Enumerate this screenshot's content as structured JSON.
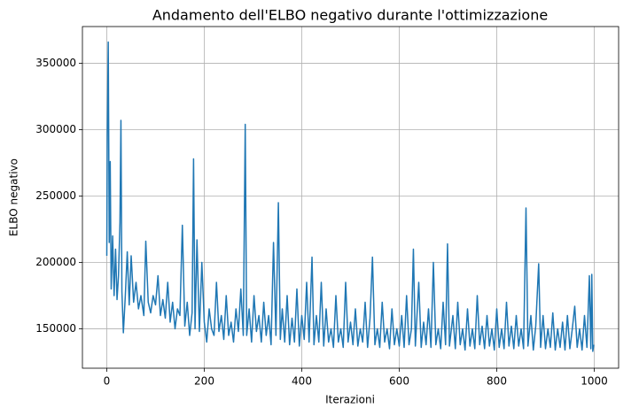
{
  "chart_data": {
    "type": "line",
    "title": "Andamento dell'ELBO negativo durante l'ottimizzazione",
    "xlabel": "Iterazioni",
    "ylabel": "ELBO negativo",
    "x": [
      0,
      1,
      3,
      5,
      7,
      9,
      12,
      15,
      18,
      21,
      24,
      27,
      29,
      31,
      34,
      38,
      42,
      46,
      50,
      55,
      60,
      65,
      70,
      76,
      80,
      85,
      90,
      95,
      100,
      105,
      110,
      115,
      120,
      125,
      130,
      135,
      140,
      145,
      150,
      155,
      160,
      165,
      170,
      175,
      178,
      181,
      185,
      190,
      195,
      200,
      205,
      210,
      215,
      220,
      225,
      230,
      235,
      240,
      245,
      250,
      255,
      260,
      265,
      270,
      275,
      280,
      284,
      287,
      292,
      297,
      302,
      307,
      312,
      317,
      322,
      327,
      332,
      337,
      342,
      347,
      352,
      356,
      360,
      365,
      370,
      375,
      380,
      385,
      390,
      395,
      400,
      405,
      410,
      415,
      421,
      425,
      430,
      435,
      440,
      445,
      450,
      455,
      460,
      465,
      470,
      475,
      480,
      485,
      490,
      495,
      500,
      505,
      510,
      515,
      520,
      525,
      530,
      535,
      540,
      545,
      550,
      555,
      560,
      565,
      570,
      575,
      580,
      585,
      590,
      595,
      600,
      605,
      610,
      615,
      620,
      625,
      629,
      633,
      640,
      645,
      650,
      655,
      660,
      665,
      670,
      675,
      680,
      685,
      690,
      695,
      699,
      703,
      710,
      715,
      720,
      725,
      730,
      735,
      740,
      745,
      750,
      755,
      760,
      765,
      770,
      775,
      780,
      785,
      790,
      795,
      800,
      805,
      810,
      815,
      820,
      825,
      830,
      835,
      840,
      845,
      850,
      855,
      860,
      864,
      870,
      875,
      880,
      886,
      890,
      895,
      900,
      905,
      910,
      915,
      920,
      925,
      930,
      935,
      940,
      945,
      950,
      955,
      960,
      965,
      970,
      975,
      980,
      985,
      990,
      993,
      995,
      997,
      999
    ],
    "series": [
      {
        "name": "ELBO negativo",
        "color": "#1f77b4",
        "values": [
          205000,
          296000,
          366000,
          215000,
          276000,
          180000,
          220000,
          175000,
          210000,
          172000,
          190000,
          230000,
          307000,
          178000,
          147000,
          175000,
          208000,
          168000,
          205000,
          170000,
          185000,
          165000,
          175000,
          160000,
          216000,
          170000,
          162000,
          175000,
          168000,
          190000,
          160000,
          172000,
          158000,
          185000,
          155000,
          170000,
          150000,
          165000,
          160000,
          228000,
          152000,
          170000,
          145000,
          162000,
          278000,
          150000,
          217000,
          148000,
          200000,
          155000,
          140000,
          165000,
          150000,
          145000,
          185000,
          148000,
          160000,
          142000,
          175000,
          145000,
          155000,
          140000,
          165000,
          148000,
          180000,
          145000,
          304000,
          145000,
          165000,
          140000,
          175000,
          148000,
          160000,
          140000,
          170000,
          145000,
          160000,
          138000,
          215000,
          145000,
          245000,
          142000,
          165000,
          140000,
          175000,
          138000,
          158000,
          140000,
          180000,
          137000,
          160000,
          142000,
          185000,
          140000,
          204000,
          138000,
          160000,
          140000,
          185000,
          137000,
          165000,
          140000,
          150000,
          136000,
          175000,
          140000,
          150000,
          136000,
          185000,
          140000,
          155000,
          138000,
          165000,
          137000,
          150000,
          140000,
          170000,
          136000,
          158000,
          204000,
          138000,
          150000,
          136000,
          170000,
          140000,
          150000,
          135000,
          165000,
          138000,
          150000,
          137000,
          160000,
          136000,
          175000,
          138000,
          150000,
          210000,
          137000,
          185000,
          136000,
          155000,
          138000,
          165000,
          136000,
          200000,
          138000,
          150000,
          135000,
          170000,
          138000,
          214000,
          137000,
          160000,
          135000,
          170000,
          138000,
          150000,
          134000,
          165000,
          137000,
          150000,
          135000,
          175000,
          138000,
          152000,
          135000,
          160000,
          137000,
          150000,
          134000,
          165000,
          136000,
          150000,
          135000,
          170000,
          137000,
          152000,
          135000,
          160000,
          137000,
          150000,
          135000,
          241000,
          137000,
          160000,
          134000,
          152000,
          199000,
          136000,
          160000,
          135000,
          150000,
          136000,
          162000,
          134000,
          150000,
          136000,
          155000,
          134000,
          160000,
          135000,
          150000,
          167000,
          136000,
          150000,
          134000,
          160000,
          136000,
          190000,
          135000,
          191000,
          133000,
          138000
        ]
      }
    ],
    "xlim": [
      -50,
      1050
    ],
    "xticks": [
      0,
      200,
      400,
      600,
      800,
      1000
    ],
    "ylim": [
      120300,
      377700
    ],
    "yticks": [
      150000,
      200000,
      250000,
      300000,
      350000
    ],
    "grid": true
  }
}
